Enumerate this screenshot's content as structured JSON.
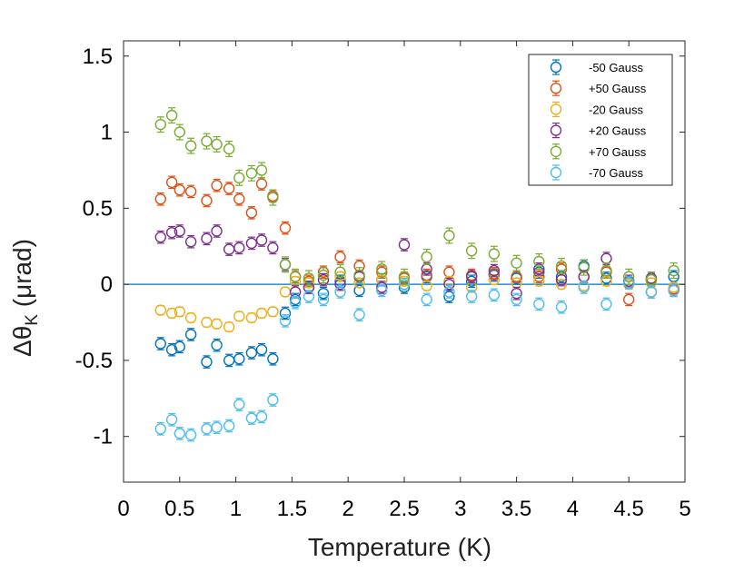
{
  "chart_data": {
    "type": "scatter",
    "title": "",
    "xlabel": "Temperature (K)",
    "ylabel_main": "Δθ",
    "ylabel_sub": "K",
    "ylabel_rest": " (μrad)",
    "xlim": [
      0,
      5
    ],
    "ylim": [
      -1.3,
      1.6
    ],
    "xticks": [
      0,
      0.5,
      1,
      1.5,
      2,
      2.5,
      3,
      3.5,
      4,
      4.5,
      5
    ],
    "xtick_labels": [
      "0",
      "0.5",
      "1",
      "1.5",
      "2",
      "2.5",
      "3",
      "3.5",
      "4",
      "4.5",
      "5"
    ],
    "yticks": [
      1.5,
      1,
      0.5,
      0,
      -0.5,
      -1
    ],
    "ytick_labels": [
      "1.5",
      "1",
      "0.5",
      "0",
      "-0.5",
      "-1"
    ],
    "grid": false,
    "legend_position": "top-right",
    "reference_line": {
      "y": 0,
      "color": "#0072BD"
    },
    "series": [
      {
        "name": "-50 Gauss",
        "color": "#0072BD",
        "x": [
          0.33,
          0.43,
          0.5,
          0.6,
          0.74,
          0.83,
          0.94,
          1.03,
          1.14,
          1.23,
          1.33,
          1.44,
          1.53,
          1.65,
          1.78,
          1.93,
          2.1,
          2.3,
          2.5,
          2.7,
          2.9,
          3.1,
          3.3,
          3.5,
          3.7,
          3.9,
          4.1,
          4.3,
          4.5,
          4.7,
          4.9
        ],
        "y": [
          -0.39,
          -0.43,
          -0.41,
          -0.33,
          -0.51,
          -0.4,
          -0.5,
          -0.49,
          -0.45,
          -0.43,
          -0.49,
          -0.19,
          -0.1,
          -0.02,
          -0.06,
          0.02,
          -0.04,
          0.03,
          -0.02,
          0.05,
          -0.08,
          0.02,
          0.06,
          0.04,
          0.08,
          0.05,
          0.12,
          0.04,
          0.01,
          0.03,
          0.05
        ],
        "err": 0.04
      },
      {
        "name": "+50 Gauss",
        "color": "#D95319",
        "x": [
          0.33,
          0.43,
          0.5,
          0.6,
          0.74,
          0.83,
          0.94,
          1.03,
          1.14,
          1.23,
          1.33,
          1.44,
          1.53,
          1.65,
          1.78,
          1.93,
          2.1,
          2.3,
          2.5,
          2.7,
          2.9,
          3.1,
          3.3,
          3.5,
          3.7,
          3.9,
          4.1,
          4.3,
          4.5,
          4.7,
          4.9
        ],
        "y": [
          0.56,
          0.67,
          0.62,
          0.61,
          0.55,
          0.65,
          0.63,
          0.56,
          0.47,
          0.66,
          0.58,
          0.37,
          0.05,
          0.02,
          0.08,
          0.18,
          0.12,
          0.08,
          0.04,
          0.06,
          0.08,
          0.06,
          0.07,
          0.05,
          0.05,
          0.1,
          0.05,
          0.08,
          -0.1,
          -0.05,
          -0.03
        ],
        "err": 0.04
      },
      {
        "name": "-20 Gauss",
        "color": "#EDB120",
        "x": [
          0.33,
          0.43,
          0.5,
          0.6,
          0.74,
          0.83,
          0.94,
          1.03,
          1.14,
          1.23,
          1.33,
          1.44,
          1.53,
          1.65,
          1.78,
          1.93,
          2.1,
          2.3,
          2.5,
          2.7,
          2.9,
          3.1,
          3.3,
          3.5,
          3.7,
          3.9,
          4.1,
          4.3,
          4.5,
          4.7,
          4.9
        ],
        "y": [
          -0.17,
          -0.19,
          -0.18,
          -0.22,
          -0.25,
          -0.26,
          -0.28,
          -0.21,
          -0.22,
          -0.19,
          -0.18,
          -0.05,
          0.02,
          0.01,
          0.03,
          0.05,
          0.01,
          0.03,
          0.02,
          -0.01,
          0.02,
          -0.02,
          0.03,
          0.01,
          0.02,
          0.0,
          -0.01,
          0.02,
          0.0,
          0.01,
          -0.02
        ],
        "err": 0.03
      },
      {
        "name": "+20 Gauss",
        "color": "#7E2F8E",
        "x": [
          0.33,
          0.43,
          0.5,
          0.6,
          0.74,
          0.83,
          0.94,
          1.03,
          1.14,
          1.23,
          1.33,
          1.44,
          1.53,
          1.65,
          1.78,
          1.93,
          2.1,
          2.3,
          2.5,
          2.7,
          2.9,
          3.1,
          3.3,
          3.5,
          3.7,
          3.9,
          4.1,
          4.3,
          4.5,
          4.7,
          4.9
        ],
        "y": [
          0.31,
          0.34,
          0.35,
          0.28,
          0.3,
          0.35,
          0.23,
          0.24,
          0.27,
          0.29,
          0.24,
          0.13,
          -0.05,
          -0.02,
          0.03,
          0.0,
          0.05,
          -0.02,
          0.26,
          0.1,
          0.0,
          0.05,
          0.09,
          -0.06,
          0.1,
          0.03,
          0.05,
          0.17,
          0.02,
          0.04,
          -0.04
        ],
        "err": 0.04
      },
      {
        "name": "+70 Gauss",
        "color": "#77AC30",
        "x": [
          0.33,
          0.43,
          0.5,
          0.6,
          0.74,
          0.83,
          0.94,
          1.03,
          1.14,
          1.23,
          1.33,
          1.44,
          1.53,
          1.65,
          1.78,
          1.93,
          2.1,
          2.3,
          2.5,
          2.7,
          2.9,
          3.1,
          3.3,
          3.5,
          3.7,
          3.9,
          4.1,
          4.3,
          4.5,
          4.7,
          4.9
        ],
        "y": [
          1.05,
          1.11,
          1.0,
          0.91,
          0.94,
          0.92,
          0.89,
          0.7,
          0.73,
          0.75,
          0.57,
          0.13,
          0.05,
          0.04,
          0.06,
          0.08,
          0.06,
          0.1,
          0.05,
          0.18,
          0.32,
          0.22,
          0.2,
          0.14,
          0.15,
          0.12,
          0.11,
          0.09,
          0.05,
          0.03,
          0.09
        ],
        "err": 0.05
      },
      {
        "name": "-70 Gauss",
        "color": "#4DBEEE",
        "x": [
          0.33,
          0.43,
          0.5,
          0.6,
          0.74,
          0.83,
          0.94,
          1.03,
          1.14,
          1.23,
          1.33,
          1.44,
          1.53,
          1.65,
          1.78,
          1.93,
          2.1,
          2.3,
          2.5,
          2.7,
          2.9,
          3.1,
          3.3,
          3.5,
          3.7,
          3.9,
          4.1,
          4.3,
          4.5,
          4.7,
          4.9
        ],
        "y": [
          -0.95,
          -0.89,
          -0.98,
          -0.99,
          -0.95,
          -0.94,
          -0.93,
          -0.79,
          -0.88,
          -0.87,
          -0.76,
          -0.24,
          -0.12,
          -0.08,
          -0.1,
          -0.05,
          -0.2,
          -0.04,
          0.0,
          -0.1,
          -0.05,
          -0.08,
          -0.07,
          -0.1,
          -0.13,
          -0.15,
          -0.02,
          -0.13,
          0.01,
          -0.05,
          -0.04
        ],
        "err": 0.04
      }
    ]
  }
}
